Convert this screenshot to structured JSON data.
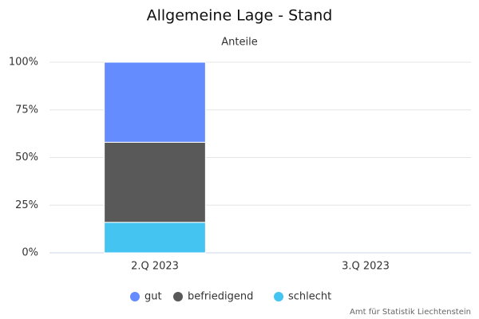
{
  "chart_data": {
    "type": "stacked_bar",
    "title": "Allgemeine Lage - Stand",
    "subtitle": "Anteile",
    "categories": [
      "2.Q 2023",
      "3.Q 2023"
    ],
    "series": [
      {
        "name": "gut",
        "color": "#648cff",
        "values": [
          42,
          null
        ]
      },
      {
        "name": "befriedigend",
        "color": "#595959",
        "values": [
          42,
          null
        ]
      },
      {
        "name": "schlecht",
        "color": "#44c4f0",
        "values": [
          16,
          null
        ]
      }
    ],
    "ylim": [
      0,
      100
    ],
    "yticks": [
      {
        "value": 0,
        "label": "0%"
      },
      {
        "value": 25,
        "label": "25%"
      },
      {
        "value": 50,
        "label": "50%"
      },
      {
        "value": 75,
        "label": "75%"
      },
      {
        "value": 100,
        "label": "100%"
      }
    ],
    "grid": true,
    "legend": "bottom",
    "credits": "Amt für Statistik Liechtenstein"
  }
}
